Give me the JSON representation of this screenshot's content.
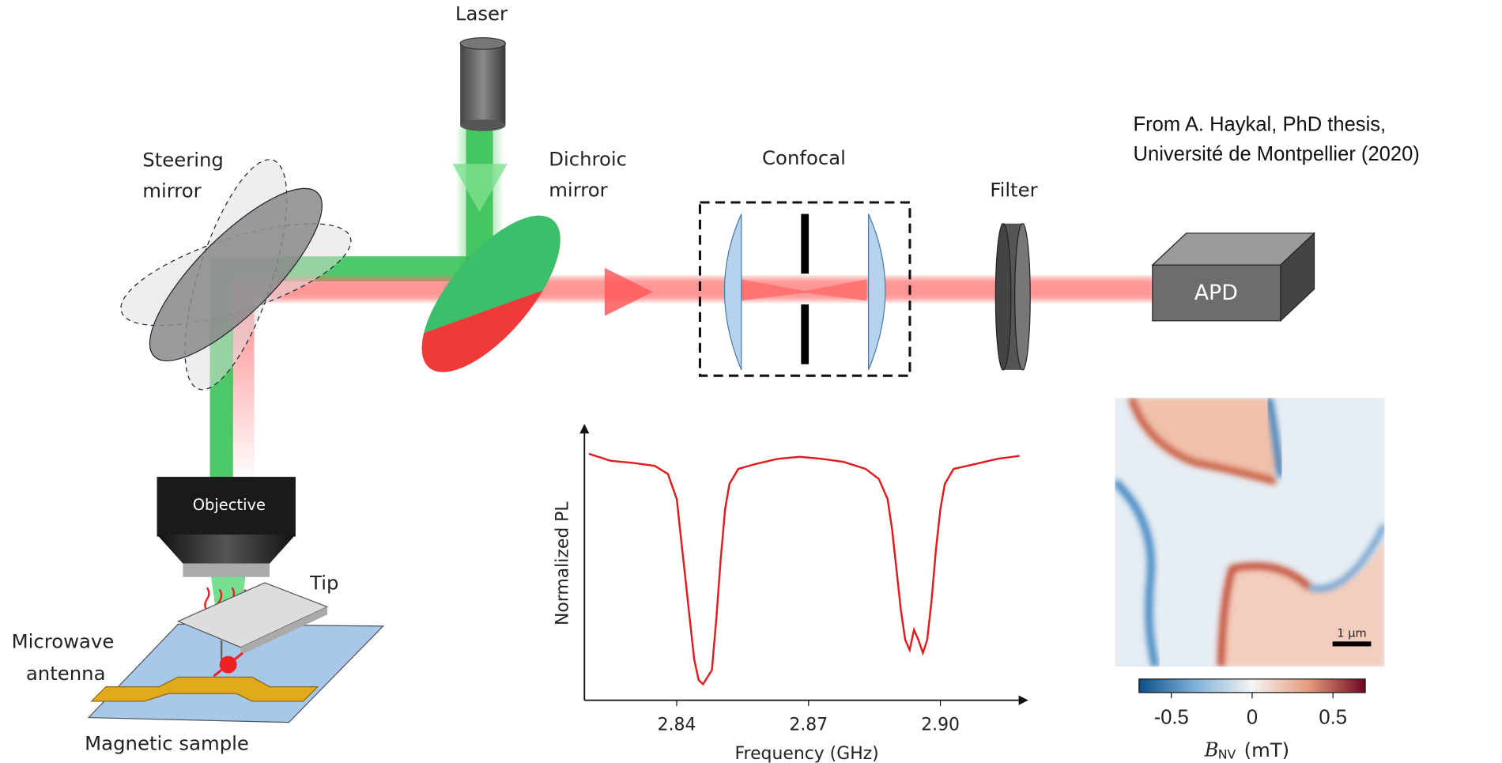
{
  "labels": {
    "laser": "Laser",
    "steering_mirror": [
      "Steering",
      "mirror"
    ],
    "dichroic_mirror": [
      "Dichroic",
      "mirror"
    ],
    "confocal": "Confocal",
    "filter": "Filter",
    "apd": "APD",
    "objective": "Objective",
    "tip": "Tip",
    "microwave_antenna": [
      "Microwave",
      "antenna"
    ],
    "magnetic_sample": "Magnetic sample"
  },
  "citation": [
    "From A. Haykal, PhD thesis,",
    "Université de Montpellier (2020)"
  ],
  "chart_data": {
    "type": "line",
    "x_label": "Frequency (GHz)",
    "y_label": "Normalized PL",
    "x": [
      2.82,
      2.825,
      2.83,
      2.835,
      2.838,
      2.84,
      2.841,
      2.842,
      2.843,
      2.844,
      2.845,
      2.846,
      2.847,
      2.848,
      2.849,
      2.85,
      2.851,
      2.852,
      2.854,
      2.858,
      2.863,
      2.868,
      2.873,
      2.878,
      2.883,
      2.886,
      2.888,
      2.889,
      2.89,
      2.891,
      2.892,
      2.893,
      2.894,
      2.895,
      2.896,
      2.897,
      2.898,
      2.899,
      2.9,
      2.901,
      2.903,
      2.908,
      2.913,
      2.918
    ],
    "series": [
      {
        "color": "#e01b1b",
        "values": [
          1.005,
          0.998,
          0.996,
          0.993,
          0.985,
          0.96,
          0.92,
          0.88,
          0.84,
          0.8,
          0.78,
          0.776,
          0.783,
          0.79,
          0.84,
          0.9,
          0.95,
          0.975,
          0.99,
          0.995,
          1.0,
          1.002,
          1.0,
          0.997,
          0.99,
          0.98,
          0.96,
          0.93,
          0.89,
          0.85,
          0.82,
          0.81,
          0.83,
          0.82,
          0.807,
          0.82,
          0.86,
          0.91,
          0.95,
          0.975,
          0.99,
          0.995,
          1.0,
          1.003
        ]
      }
    ],
    "xlim": [
      2.819,
      2.92
    ],
    "ylim": [
      0.76,
      1.03
    ],
    "xticks": [
      2.84,
      2.87,
      {
        "value": 2.9,
        "label": "2.90"
      }
    ]
  },
  "colorbar": {
    "label": "B",
    "label_sub": "NV",
    "unit": "(mT)",
    "clim": [
      -0.7,
      0.7
    ],
    "ticks": [
      -0.5,
      0,
      0.5
    ],
    "scale_bar": "1 µm"
  }
}
